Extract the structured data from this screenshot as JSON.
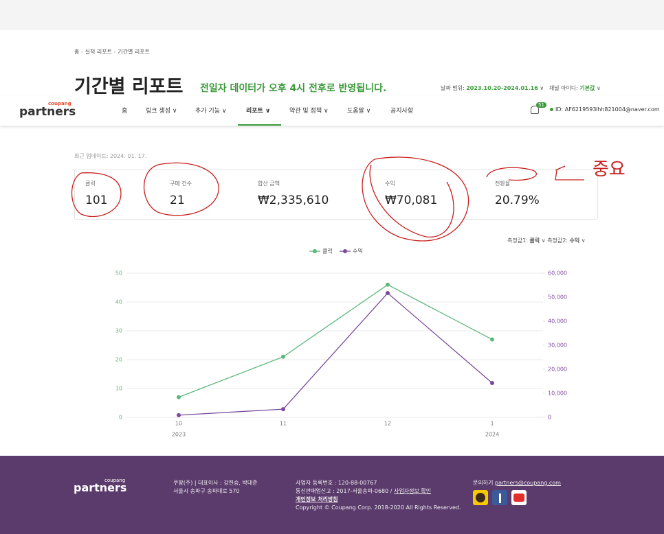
{
  "breadcrumb": [
    "홈",
    "실적 리포트",
    "기간별 리포트"
  ],
  "header": {
    "title": "기간별 리포트",
    "notice": "전일자 데이터가 오후 4시 전후로 반영됩니다.",
    "date_label": "날짜 범위:",
    "date_value": "2023.10.20-2024.01.16",
    "channel_label": "채널 아이디:",
    "channel_value": "기본값"
  },
  "nav": {
    "logo_top": "coupang",
    "logo": "partners",
    "items": [
      "홈",
      "링크 생성",
      "추가 기능",
      "리포트",
      "약관 및 정책",
      "도움말",
      "공지사항"
    ],
    "notifications": "51",
    "user_id": "ID: AF6219593",
    "email": "lhh821004@naver.com"
  },
  "updated": "최근 업데이트: 2024. 01. 17.",
  "stats": [
    {
      "label": "클릭",
      "value": "101"
    },
    {
      "label": "구매 건수",
      "value": "21"
    },
    {
      "label": "합산 금액",
      "value": "₩2,335,610"
    },
    {
      "label": "수익",
      "value": "₩70,081"
    },
    {
      "label": "전환율",
      "value": "20.79%"
    }
  ],
  "measures": [
    {
      "label": "측정값1:",
      "value": "클릭"
    },
    {
      "label": "측정값2:",
      "value": "수익"
    }
  ],
  "chart_data": {
    "type": "line",
    "categories": [
      "10",
      "11",
      "12",
      "1"
    ],
    "year_labels": [
      "2023",
      null,
      null,
      "2024"
    ],
    "series": [
      {
        "name": "클릭",
        "color": "#5cb87a",
        "values": [
          7,
          21,
          46,
          27
        ]
      },
      {
        "name": "수익",
        "color": "#7b4a9c",
        "axis": "y2",
        "values": [
          900,
          3400,
          51700,
          14300
        ]
      }
    ],
    "ylim": [
      0,
      50
    ],
    "yticks": [
      0,
      10,
      20,
      30,
      40,
      50
    ],
    "y2lim": [
      0,
      60000
    ],
    "y2ticks": [
      0,
      {
        "value": 10000,
        "label": "10,000"
      },
      {
        "value": 20000,
        "label": "20,000"
      },
      {
        "value": 30000,
        "label": "30,000"
      },
      {
        "value": 40000,
        "label": "40,000"
      },
      {
        "value": 50000,
        "label": "50,000"
      },
      {
        "value": 60000,
        "label": "60,000"
      }
    ],
    "grid": true
  },
  "annotation": "중요",
  "footer": {
    "logo_top": "coupang",
    "logo": "partners",
    "company": "쿠팡(주) | 대표이사 : 강한승, 박대준",
    "address": "서울시 송파구 송파대로 570",
    "business_no": "사업자 등록번호 : 120-88-00767",
    "telecom": "통신판매업신고 : 2017-서울송파-0680 /",
    "telecom_link": "사업자정보 확인",
    "privacy": "개인정보 처리방침",
    "copyright": "Copyright © Coupang Corp. 2018-2020 All Rights Reserved.",
    "contact_label": "문의하기",
    "contact_email": "partners@coupang.com"
  }
}
